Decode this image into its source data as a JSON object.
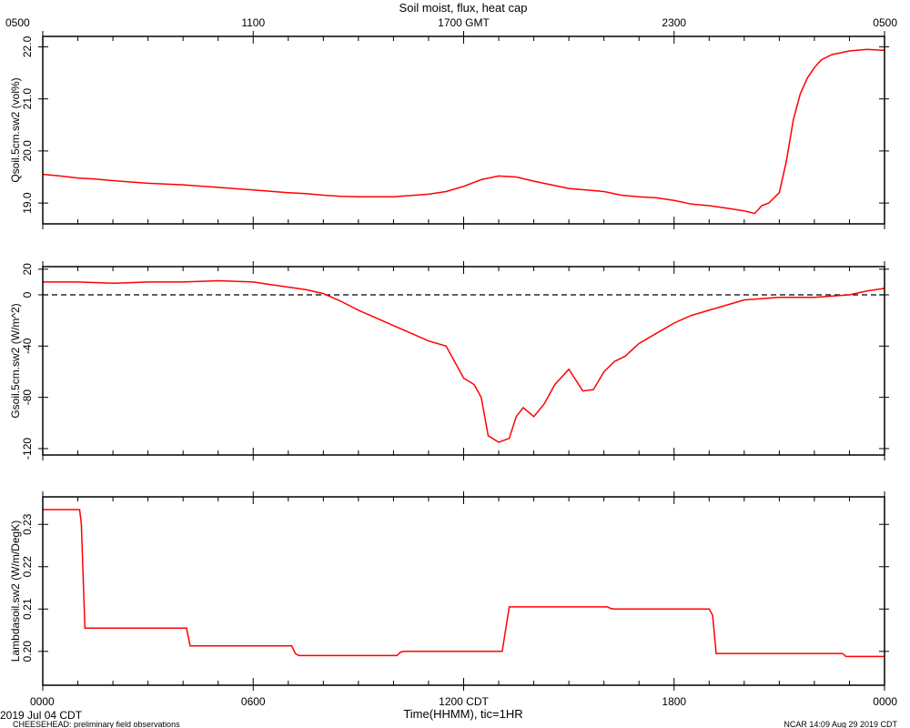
{
  "title": "Soil moist, flux, heat cap",
  "top_axis": {
    "tick_labels": [
      "0500",
      "1100",
      "1700 GMT",
      "2300",
      "0500"
    ]
  },
  "bottom_axis": {
    "tick_labels": [
      "0000",
      "0600",
      "1200 CDT",
      "1800",
      "0000"
    ],
    "label": "Time(HHMM), tic=1HR"
  },
  "footer": {
    "date": "2019 Jul 04 CDT",
    "note": "CHEESEHEAD: preliminary field observations",
    "stamp": "NCAR 14:09 Aug 29 2019 CDT"
  },
  "colors": {
    "series": "#ff0000",
    "axes": "#000000",
    "zero_line": "#000000"
  },
  "chart_data": [
    {
      "type": "line",
      "ylabel": "Qsoil.5cm.sw2 (vol%)",
      "xlim": [
        0,
        24
      ],
      "ylim": [
        18.6,
        22.2
      ],
      "yticks": [
        19.0,
        20.0,
        21.0,
        22.0
      ],
      "ytick_labels": [
        "19.0",
        "20.0",
        "21.0",
        "22.0"
      ],
      "series": [
        {
          "color": "#ff0000",
          "x": [
            0,
            0.5,
            1,
            1.5,
            2,
            3,
            4,
            5,
            6,
            7,
            7.5,
            8,
            8.5,
            9,
            10,
            11,
            11.5,
            12,
            12.5,
            13,
            13.5,
            14,
            14.5,
            15,
            15.5,
            16,
            16.5,
            17,
            17.5,
            18,
            18.5,
            19,
            19.5,
            20,
            20.3,
            20.5,
            20.7,
            21,
            21.2,
            21.4,
            21.6,
            21.8,
            22,
            22.2,
            22.5,
            23,
            23.5,
            24
          ],
          "y": [
            19.55,
            19.52,
            19.48,
            19.46,
            19.43,
            19.38,
            19.35,
            19.3,
            19.25,
            19.2,
            19.18,
            19.15,
            19.13,
            19.12,
            19.12,
            19.17,
            19.22,
            19.32,
            19.45,
            19.52,
            19.5,
            19.42,
            19.35,
            19.28,
            19.25,
            19.22,
            19.15,
            19.12,
            19.1,
            19.05,
            18.98,
            18.95,
            18.9,
            18.85,
            18.8,
            18.95,
            19.0,
            19.2,
            19.8,
            20.6,
            21.1,
            21.4,
            21.6,
            21.75,
            21.85,
            21.92,
            21.95,
            21.93
          ]
        }
      ]
    },
    {
      "type": "line",
      "ylabel": "Gsoil.5cm.sw2 (W/m^2)",
      "xlim": [
        0,
        24
      ],
      "ylim": [
        -125,
        22
      ],
      "yticks": [
        -120,
        -80,
        -40,
        0,
        20
      ],
      "ytick_labels": [
        "-120",
        "-80",
        "-40",
        "0",
        "20"
      ],
      "zero_line": true,
      "series": [
        {
          "color": "#ff0000",
          "x": [
            0,
            1,
            2,
            3,
            4,
            5,
            6,
            6.5,
            7,
            7.5,
            8,
            8.5,
            9,
            9.5,
            10,
            10.5,
            11,
            11.5,
            12,
            12.3,
            12.5,
            12.7,
            13,
            13.3,
            13.5,
            13.7,
            14,
            14.3,
            14.6,
            15,
            15.4,
            15.7,
            16,
            16.3,
            16.6,
            17,
            17.5,
            18,
            18.5,
            19,
            20,
            21,
            22,
            23,
            23.5,
            24
          ],
          "y": [
            10,
            10,
            9,
            10,
            10,
            11,
            10,
            8,
            6,
            4,
            1,
            -5,
            -12,
            -18,
            -24,
            -30,
            -36,
            -40,
            -65,
            -70,
            -80,
            -110,
            -115,
            -112,
            -95,
            -88,
            -95,
            -85,
            -70,
            -58,
            -75,
            -74,
            -60,
            -52,
            -48,
            -38,
            -30,
            -22,
            -16,
            -12,
            -4,
            -2,
            -2,
            0,
            3,
            5
          ]
        }
      ]
    },
    {
      "type": "line",
      "ylabel": "Lambdasoil.sw2 (W/m/DegK)",
      "xlim": [
        0,
        24
      ],
      "ylim": [
        0.192,
        0.2365
      ],
      "yticks": [
        0.2,
        0.21,
        0.22,
        0.23
      ],
      "ytick_labels": [
        "0.20",
        "0.21",
        "0.22",
        "0.23"
      ],
      "series": [
        {
          "color": "#ff0000",
          "x": [
            0,
            1.05,
            1.1,
            1.2,
            4.1,
            4.2,
            7.1,
            7.2,
            7.3,
            10.1,
            10.2,
            10.3,
            13.1,
            13.3,
            16.1,
            16.2,
            16.3,
            19.0,
            19.1,
            19.2,
            22.8,
            22.9,
            24
          ],
          "y": [
            0.2335,
            0.2335,
            0.23,
            0.2055,
            0.2055,
            0.2013,
            0.2013,
            0.1995,
            0.199,
            0.199,
            0.1998,
            0.2,
            0.2,
            0.2105,
            0.2105,
            0.2101,
            0.21,
            0.21,
            0.2085,
            0.1995,
            0.1995,
            0.1988,
            0.1988
          ]
        }
      ]
    }
  ]
}
